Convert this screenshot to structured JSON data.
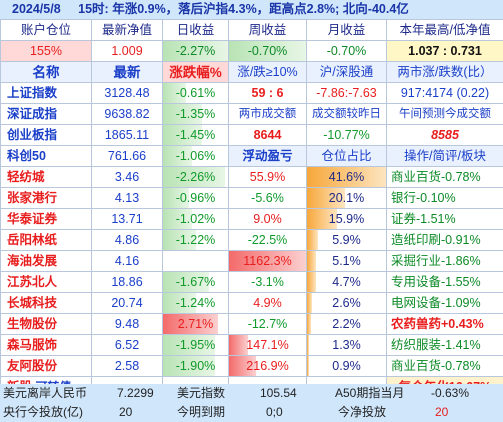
{
  "header": {
    "date": "2024/5/8",
    "message": "15时: 年涨0.9%，落后沪指4.3%，距高点2.8%; 北向-40.4亿"
  },
  "account": {
    "labels": [
      "账户仓位",
      "最新净值",
      "日收益",
      "周收益",
      "月收益",
      "本年最高/低净值"
    ],
    "values": [
      "155%",
      "1.009",
      "-2.27%",
      "-0.70%",
      "-0.70%",
      "1.037 : 0.731"
    ]
  },
  "index_header": [
    "名称",
    "最新",
    "涨跌幅%",
    "涨/跌≥10%",
    "沪/深股通",
    "两市涨/跌数(比）"
  ],
  "indices": [
    {
      "name": "上证指数",
      "price": "3128.48",
      "change": "-0.61%",
      "c4": "59 : 6",
      "c5": "-7.86:-7.63",
      "c6": "917:4174 (0.22)"
    },
    {
      "name": "深证成指",
      "price": "9638.82",
      "change": "-1.35%",
      "c4": "两市成交额",
      "c5": "成交额较昨日",
      "c6": "午间预测今成交额"
    },
    {
      "name": "创业板指",
      "price": "1865.11",
      "change": "-1.45%",
      "c4": "8644",
      "c5": "-10.77%",
      "c6": "8585"
    },
    {
      "name": "科创50",
      "price": "761.66",
      "change": "-1.06%",
      "c4": "浮动盈亏",
      "c5": "仓位占比",
      "c6": "操作/简评/板块"
    }
  ],
  "holdings": [
    {
      "name": "轻纺城",
      "price": "3.46",
      "change": "-2.26%",
      "pnl": "55.9%",
      "weight": "41.6%",
      "note": "商业百货-0.78%"
    },
    {
      "name": "张家港行",
      "price": "4.13",
      "change": "-0.96%",
      "pnl": "-5.6%",
      "weight": "20.1%",
      "note": "银行-0.10%"
    },
    {
      "name": "华泰证券",
      "price": "13.71",
      "change": "-1.02%",
      "pnl": "9.0%",
      "weight": "15.9%",
      "note": "证券-1.51%"
    },
    {
      "name": "岳阳林纸",
      "price": "4.86",
      "change": "-1.22%",
      "pnl": "-22.5%",
      "weight": "5.9%",
      "note": "造纸印刷-0.91%"
    },
    {
      "name": "海油发展",
      "price": "4.16",
      "change": "",
      "pnl": "1162.3%",
      "weight": "5.1%",
      "note": "采掘行业-1.86%"
    },
    {
      "name": "江苏北人",
      "price": "18.86",
      "change": "-1.67%",
      "pnl": "-3.1%",
      "weight": "4.7%",
      "note": "专用设备-1.55%"
    },
    {
      "name": "长城科技",
      "price": "20.74",
      "change": "-1.24%",
      "pnl": "4.9%",
      "weight": "2.6%",
      "note": "电网设备-1.09%"
    },
    {
      "name": "生物股份",
      "price": "9.48",
      "change": "2.71%",
      "pnl": "-12.7%",
      "weight": "2.2%",
      "note": "农药兽药+0.43%"
    },
    {
      "name": "森马服饰",
      "price": "6.52",
      "change": "-1.95%",
      "pnl": "147.1%",
      "weight": "1.3%",
      "note": "纺织服装-1.41%"
    },
    {
      "name": "友阿股份",
      "price": "2.58",
      "change": "-1.90%",
      "pnl": "216.9%",
      "weight": "0.9%",
      "note": "商业百货-0.78%"
    }
  ],
  "last_row": {
    "new_stock": "新股",
    "convert": "可转债",
    "dots1": "......",
    "dots2": "......",
    "annual": "复合年化16.67%"
  },
  "footer1": {
    "a_label": "美元离岸人民币",
    "a_val": "7.2299",
    "b_label": "美元指数",
    "b_val": "105.54",
    "c_label": "A50期指当月",
    "c_val": "-0.63%"
  },
  "footer2": {
    "a_label": "央行今投放(亿)",
    "a_val": "20",
    "b_label": "今明到期",
    "b_val": "0;0",
    "c_label": "今净投放",
    "c_val": "20"
  },
  "colors": {
    "header_bg": "#cfe6fb",
    "red": "#e81e1e",
    "green": "#109a2a",
    "blue": "#1a3fc8"
  },
  "bars": {
    "index_change_fill": [
      0.35,
      0.6,
      0.6,
      0.45
    ],
    "holding_change_fill": [
      0.95,
      0.4,
      0.45,
      0.5,
      0,
      0.7,
      0.5,
      0.85,
      0.8,
      0.8
    ],
    "holding_pnl_fill": [
      0,
      0,
      0,
      0,
      1.0,
      0,
      0,
      0,
      0.25,
      0.35
    ],
    "weight_fill": [
      1.0,
      0.48,
      0.38,
      0.14,
      0.12,
      0.11,
      0.06,
      0.05,
      0.03,
      0.02
    ]
  }
}
